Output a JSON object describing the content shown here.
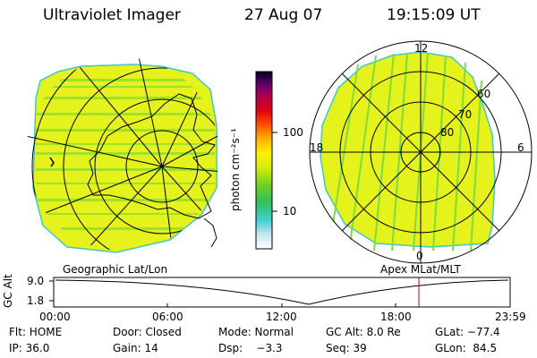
{
  "header": {
    "instrument": "Ultraviolet Imager",
    "date": "27 Aug 07",
    "time": "19:15:09 UT"
  },
  "colorbar": {
    "unit_label": "photon cm⁻²s⁻¹",
    "ticks": [
      "100",
      "10"
    ]
  },
  "polar_plot": {
    "labels": {
      "top": "12",
      "left": "18",
      "right": "6",
      "bottom": "0"
    },
    "lat_labels": [
      "60",
      "70",
      "80"
    ]
  },
  "panel_labels": {
    "left": "Geographic Lat/Lon",
    "right": "Apex MLat/MLT"
  },
  "timeline": {
    "ylabel": "GC Alt",
    "yticks": [
      "9.0",
      "1.8"
    ],
    "xticks": [
      "00:00",
      "06:00",
      "12:00",
      "18:00",
      "23:59"
    ],
    "current_time_fraction": 0.8
  },
  "info": {
    "flt": "Flt: HOME",
    "door": "Door: Closed",
    "mode": "Mode: Normal",
    "gc_alt": "GC Alt: 8.0 Re",
    "glat": "GLat: −77.4",
    "ip": "IP: 36.0",
    "gain": "Gain: 14",
    "dsp": "Dsp:    −3.3",
    "seq": "Seq: 39",
    "glon": "GLon:  84.5"
  },
  "colors": {
    "emission": "#e6f21c",
    "stripe": "#9ee32a",
    "current_time_marker": "#cc0000"
  }
}
